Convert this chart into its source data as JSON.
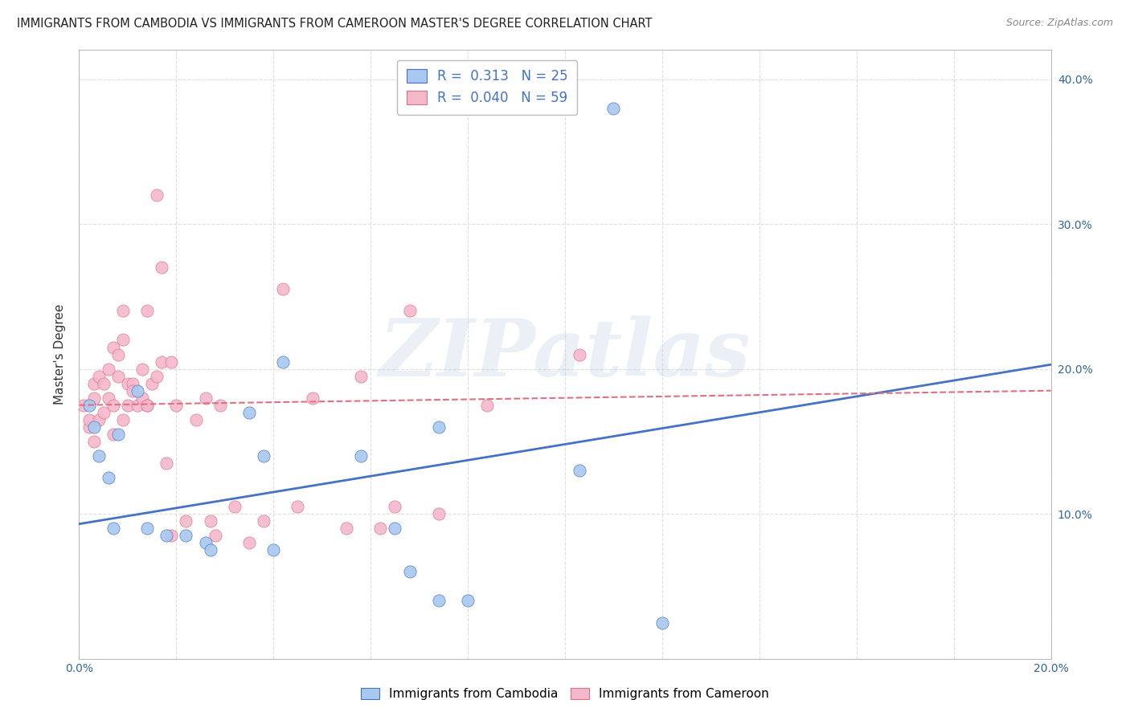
{
  "title": "IMMIGRANTS FROM CAMBODIA VS IMMIGRANTS FROM CAMEROON MASTER'S DEGREE CORRELATION CHART",
  "source": "Source: ZipAtlas.com",
  "xlabel_bottom": "Immigrants from Cambodia",
  "xlabel_right": "Immigrants from Cameroon",
  "ylabel": "Master's Degree",
  "xlim": [
    0.0,
    0.2
  ],
  "ylim": [
    0.0,
    0.42
  ],
  "color_blue": "#A8C8F0",
  "color_pink": "#F4B8CC",
  "color_blue_line": "#4472C4",
  "color_pink_line": "#E07080",
  "R_blue": 0.313,
  "N_blue": 25,
  "R_pink": 0.04,
  "N_pink": 59,
  "legend_text_color": "#4472C4",
  "watermark": "ZIPatlas",
  "blue_scatter_x": [
    0.002,
    0.008,
    0.003,
    0.004,
    0.006,
    0.007,
    0.012,
    0.014,
    0.018,
    0.022,
    0.026,
    0.027,
    0.035,
    0.042,
    0.038,
    0.04,
    0.058,
    0.065,
    0.068,
    0.074,
    0.08,
    0.103,
    0.11,
    0.12,
    0.074
  ],
  "blue_scatter_y": [
    0.175,
    0.155,
    0.16,
    0.14,
    0.125,
    0.09,
    0.185,
    0.09,
    0.085,
    0.085,
    0.08,
    0.075,
    0.17,
    0.205,
    0.14,
    0.075,
    0.14,
    0.09,
    0.06,
    0.04,
    0.04,
    0.13,
    0.38,
    0.025,
    0.16
  ],
  "pink_scatter_x": [
    0.001,
    0.002,
    0.002,
    0.003,
    0.003,
    0.003,
    0.004,
    0.004,
    0.005,
    0.005,
    0.006,
    0.006,
    0.007,
    0.007,
    0.007,
    0.008,
    0.008,
    0.009,
    0.009,
    0.009,
    0.01,
    0.01,
    0.011,
    0.011,
    0.012,
    0.013,
    0.013,
    0.014,
    0.014,
    0.014,
    0.015,
    0.016,
    0.016,
    0.017,
    0.017,
    0.018,
    0.019,
    0.019,
    0.02,
    0.022,
    0.024,
    0.026,
    0.027,
    0.028,
    0.029,
    0.032,
    0.035,
    0.038,
    0.042,
    0.045,
    0.048,
    0.055,
    0.058,
    0.062,
    0.065,
    0.068,
    0.074,
    0.084,
    0.103
  ],
  "pink_scatter_y": [
    0.175,
    0.16,
    0.165,
    0.18,
    0.15,
    0.19,
    0.165,
    0.195,
    0.17,
    0.19,
    0.18,
    0.2,
    0.155,
    0.175,
    0.215,
    0.195,
    0.21,
    0.165,
    0.22,
    0.24,
    0.19,
    0.175,
    0.19,
    0.185,
    0.175,
    0.18,
    0.2,
    0.175,
    0.24,
    0.175,
    0.19,
    0.195,
    0.32,
    0.27,
    0.205,
    0.135,
    0.085,
    0.205,
    0.175,
    0.095,
    0.165,
    0.18,
    0.095,
    0.085,
    0.175,
    0.105,
    0.08,
    0.095,
    0.255,
    0.105,
    0.18,
    0.09,
    0.195,
    0.09,
    0.105,
    0.24,
    0.1,
    0.175,
    0.21
  ],
  "blue_line_x": [
    0.0,
    0.2
  ],
  "blue_line_y_start": 0.093,
  "blue_line_y_end": 0.203,
  "pink_line_x": [
    0.0,
    0.2
  ],
  "pink_line_y_start": 0.175,
  "pink_line_y_end": 0.185,
  "grid_color": "#DEDEDE",
  "background_color": "#FFFFFF",
  "title_fontsize": 10.5,
  "axis_label_fontsize": 11,
  "tick_fontsize": 10,
  "right_ytick_labels": [
    "",
    "10.0%",
    "20.0%",
    "30.0%",
    "40.0%"
  ],
  "right_ytick_positions": [
    0.0,
    0.1,
    0.2,
    0.3,
    0.4
  ]
}
